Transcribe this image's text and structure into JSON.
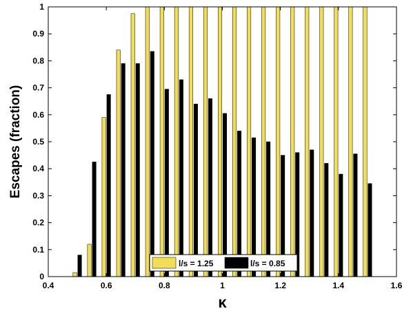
{
  "chart_data": {
    "type": "bar",
    "title": "",
    "xlabel": "κ",
    "ylabel": "Escapes (fraction)",
    "xlim": [
      0.4,
      1.6
    ],
    "ylim": [
      0,
      1
    ],
    "xticks": [
      "0.4",
      "0.6",
      "0.8",
      "1",
      "1.2",
      "1.4",
      "1.6"
    ],
    "xtick_values": [
      0.4,
      0.6,
      0.8,
      1.0,
      1.2,
      1.4,
      1.6
    ],
    "yticks": [
      "0",
      "0.1",
      "0.2",
      "0.3",
      "0.4",
      "0.5",
      "0.6",
      "0.7",
      "0.8",
      "0.9",
      "1"
    ],
    "ytick_values": [
      0,
      0.1,
      0.2,
      0.3,
      0.4,
      0.5,
      0.6,
      0.7,
      0.8,
      0.9,
      1.0
    ],
    "grid": false,
    "legend_position": "bottom-center",
    "x": [
      0.5,
      0.55,
      0.6,
      0.65,
      0.7,
      0.75,
      0.8,
      0.85,
      0.9,
      0.95,
      1.0,
      1.05,
      1.1,
      1.15,
      1.2,
      1.25,
      1.3,
      1.35,
      1.4,
      1.45,
      1.5
    ],
    "series": [
      {
        "name": "l/s = 1.25",
        "color": "#f2dd5a",
        "values": [
          0.015,
          0.12,
          0.59,
          0.84,
          0.975,
          1,
          1,
          1,
          1,
          1,
          1,
          1,
          1,
          1,
          1,
          1,
          1,
          1,
          1,
          1,
          1
        ]
      },
      {
        "name": "l/s = 0.85",
        "color": "#000000",
        "values": [
          0.08,
          0.425,
          0.675,
          0.79,
          0.79,
          0.835,
          0.695,
          0.73,
          0.64,
          0.66,
          0.605,
          0.54,
          0.515,
          0.5,
          0.45,
          0.46,
          0.47,
          0.42,
          0.38,
          0.455,
          0.345
        ]
      }
    ]
  }
}
